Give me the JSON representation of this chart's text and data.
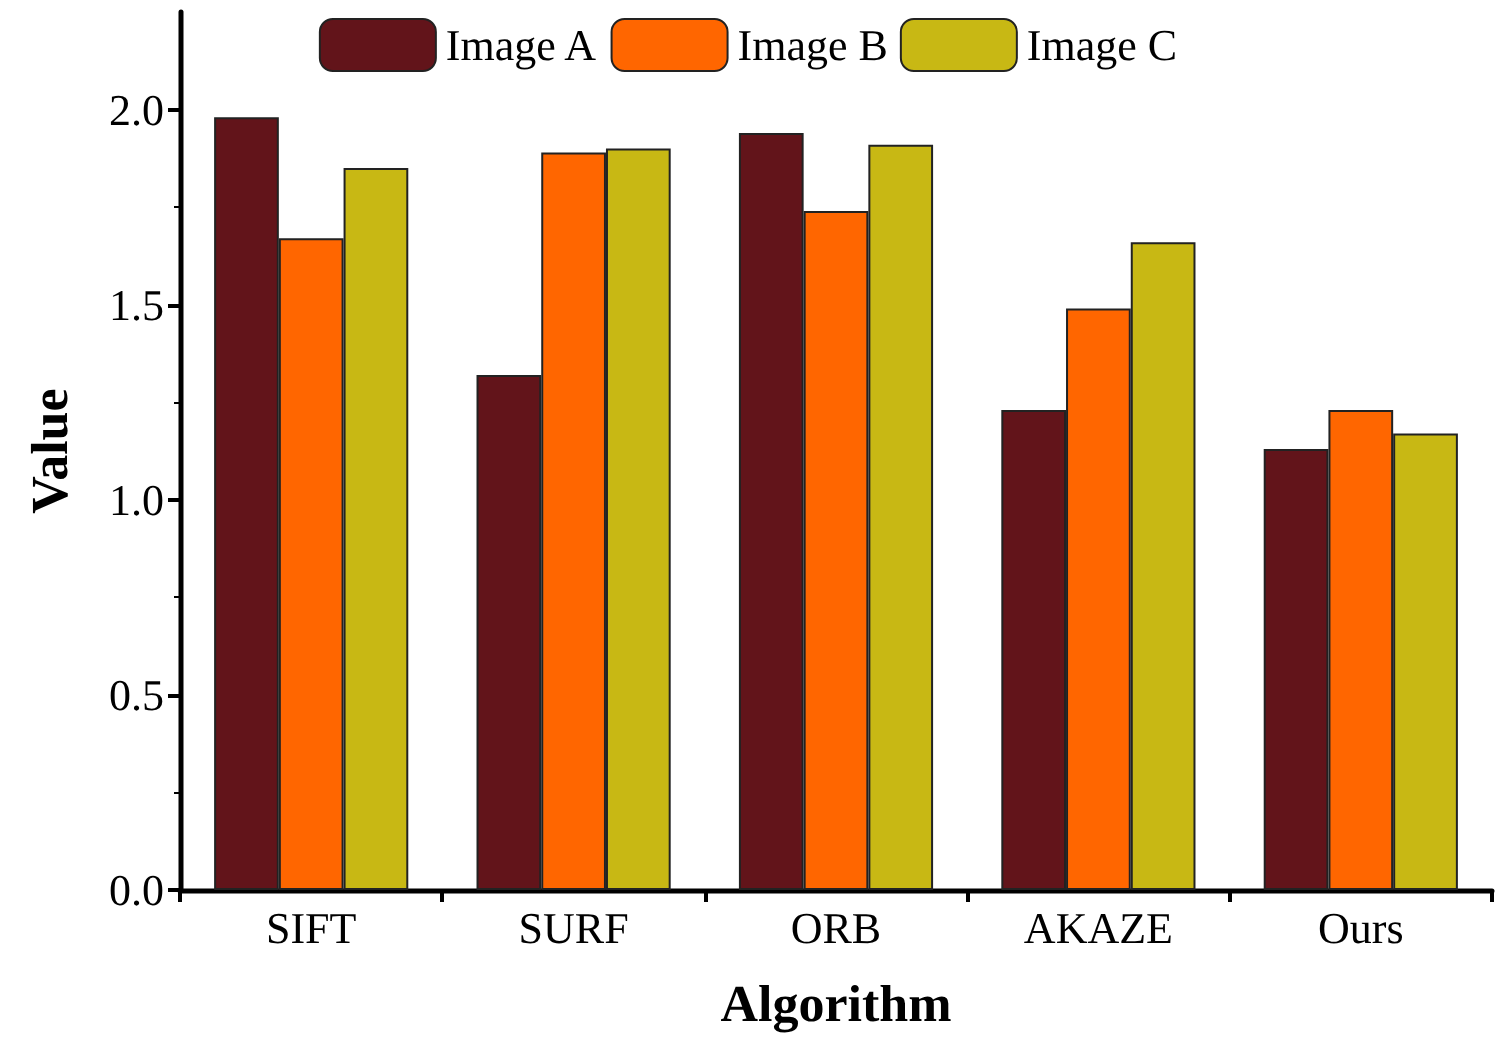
{
  "chart_data": {
    "type": "bar",
    "xlabel": "Algorithm",
    "ylabel": "Value",
    "categories": [
      "SIFT",
      "SURF",
      "ORB",
      "AKAZE",
      "Ours"
    ],
    "series": [
      {
        "name": "Image A",
        "color": "#62141a",
        "values": [
          1.98,
          1.32,
          1.94,
          1.23,
          1.13
        ]
      },
      {
        "name": "Image B",
        "color": "#ff6600",
        "values": [
          1.67,
          1.89,
          1.74,
          1.49,
          1.23
        ]
      },
      {
        "name": "Image C",
        "color": "#c8b814",
        "values": [
          1.85,
          1.9,
          1.91,
          1.66,
          1.17
        ]
      }
    ],
    "ylim": [
      0,
      2.25
    ],
    "yticks": [
      {
        "value": 0,
        "label": "0.0"
      },
      {
        "value": 0.5,
        "label": "0.5"
      },
      {
        "value": 1,
        "label": "1.0"
      },
      {
        "value": 1.5,
        "label": "1.5"
      },
      {
        "value": 2,
        "label": "2.0"
      }
    ],
    "grid": false,
    "legend": "top"
  }
}
